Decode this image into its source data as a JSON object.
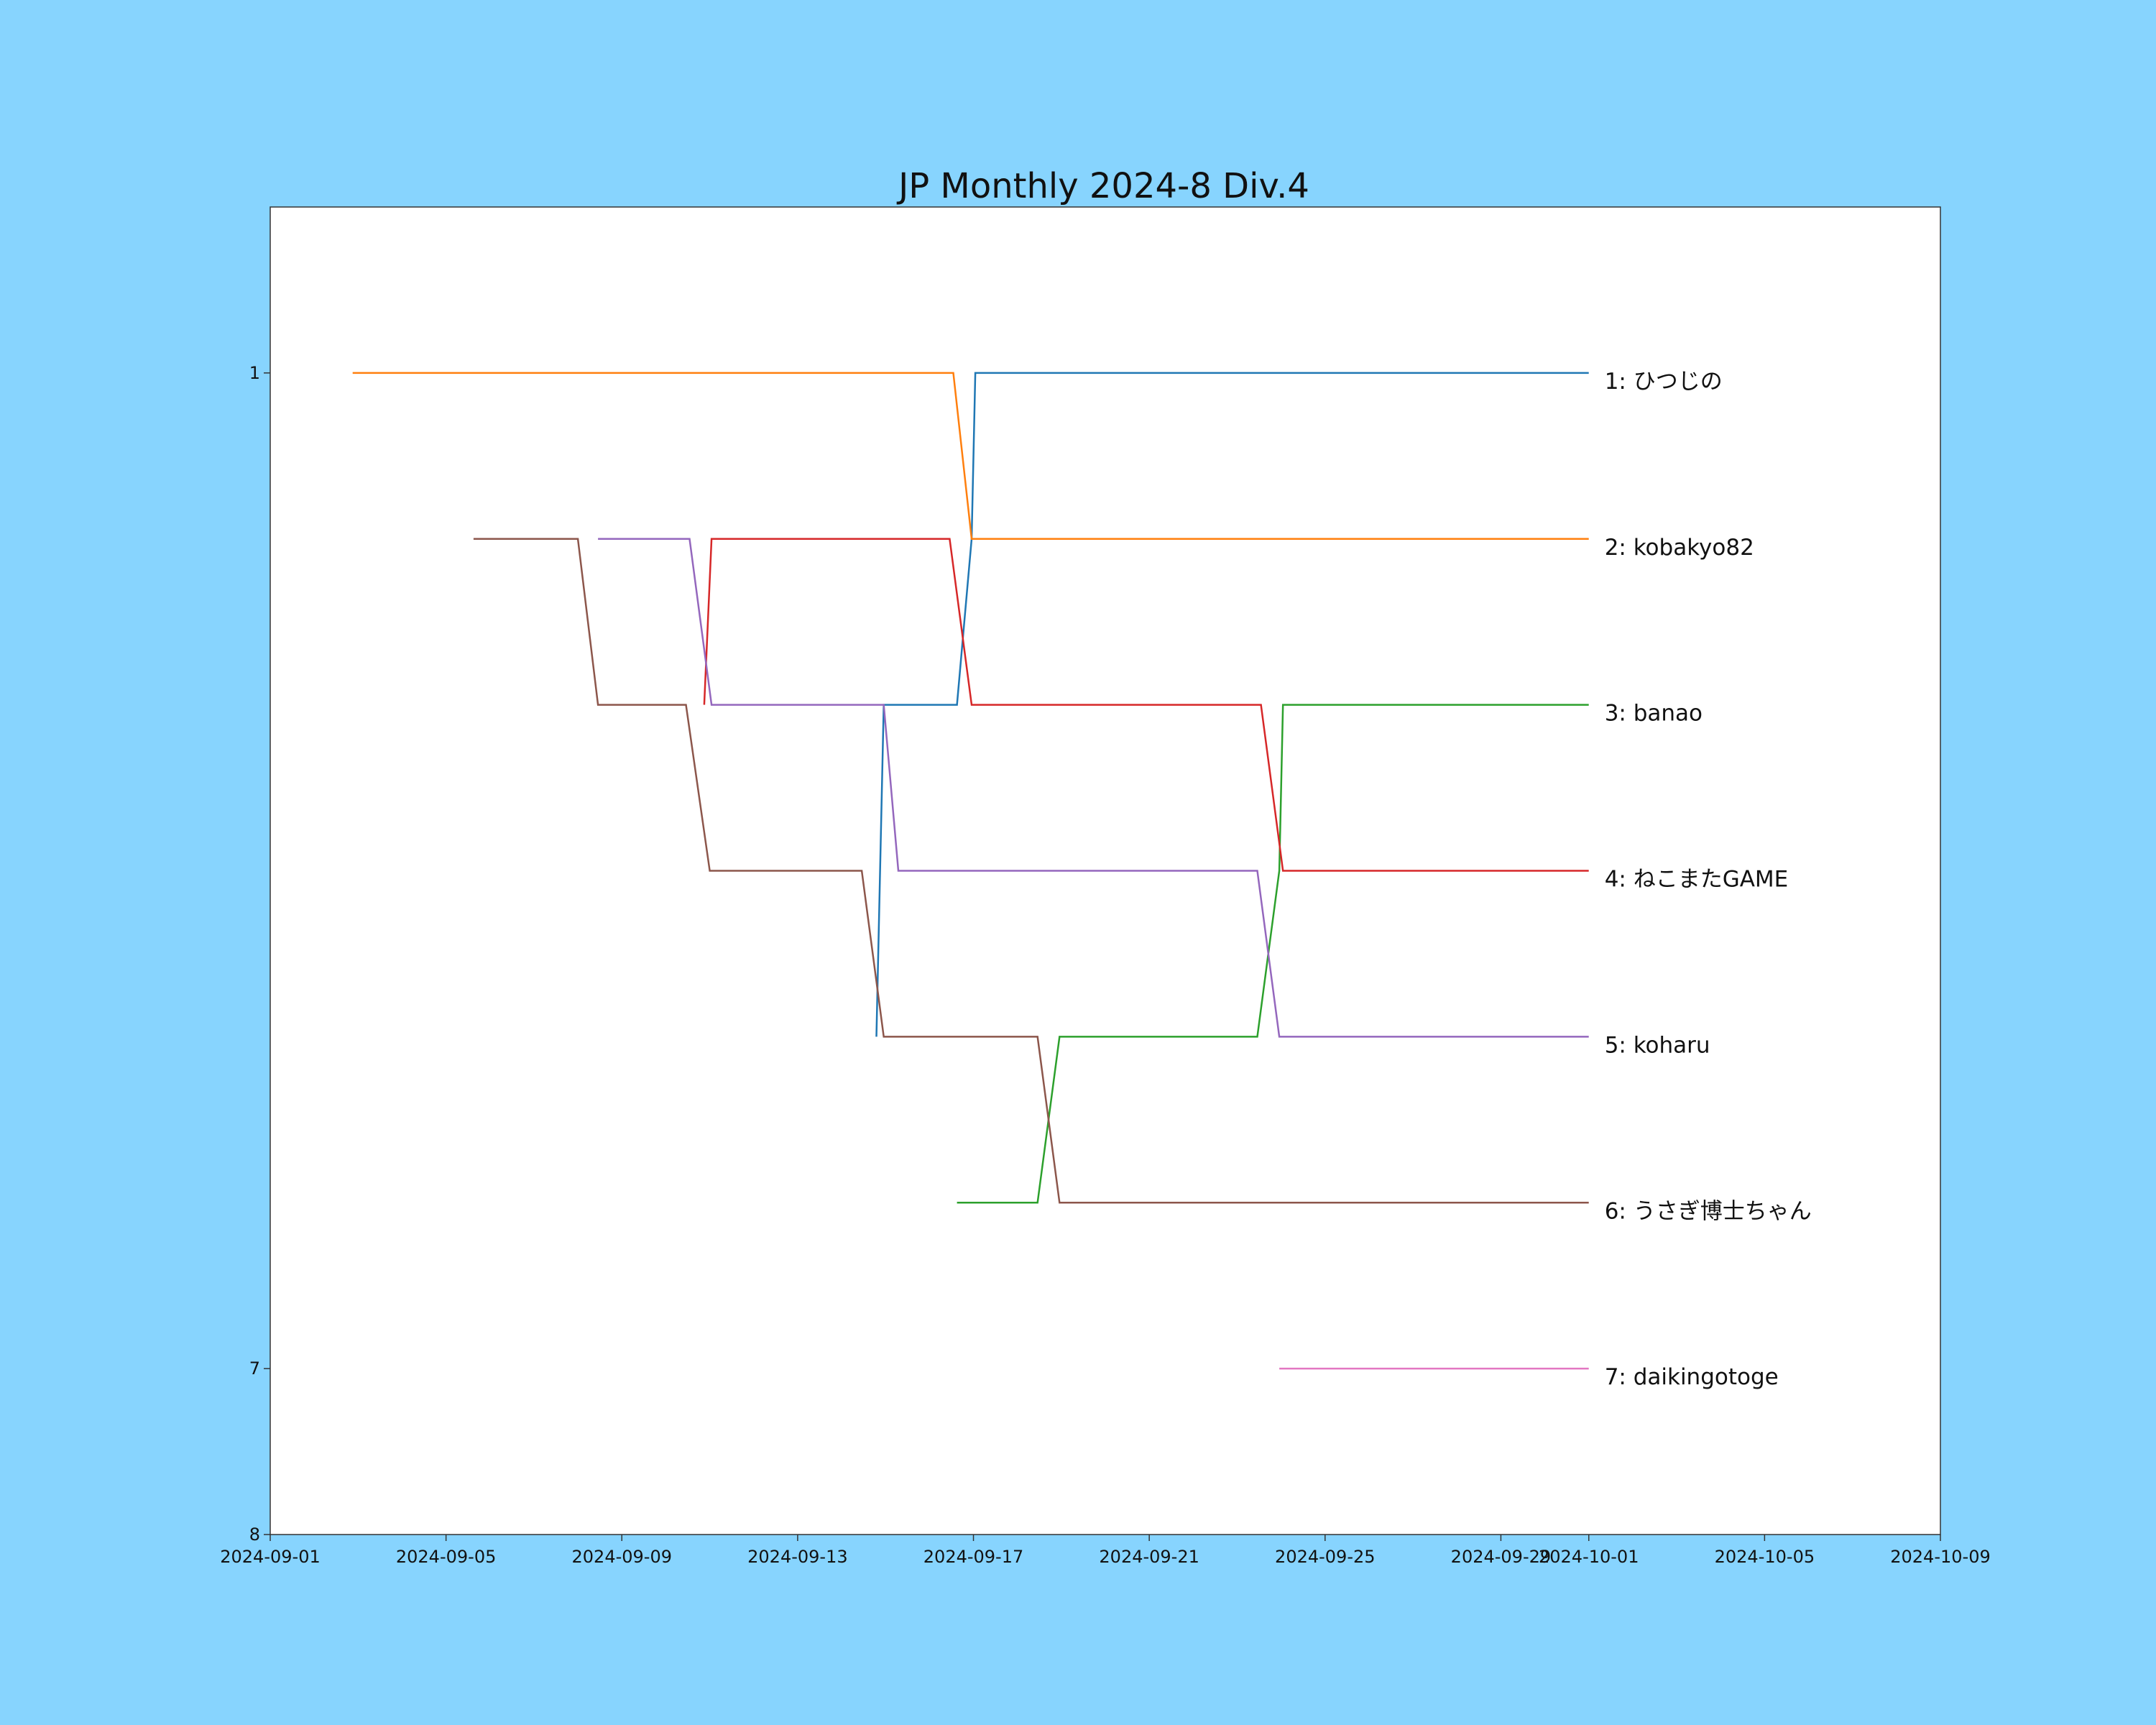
{
  "chart_data": {
    "type": "line",
    "title": "JP Monthly 2024-8 Div.4",
    "xlabel": "",
    "ylabel": "",
    "x_axis_type": "date",
    "xlim": [
      "2024-09-01",
      "2024-10-09"
    ],
    "ylim": [
      8,
      0
    ],
    "y_inverted": true,
    "grid": false,
    "legend": "none",
    "x_ticks": [
      "2024-09-01",
      "2024-09-05",
      "2024-09-09",
      "2024-09-13",
      "2024-09-17",
      "2024-09-21",
      "2024-09-25",
      "2024-09-29",
      "2024-10-01",
      "2024-10-05",
      "2024-10-09"
    ],
    "y_ticks": [
      1,
      7,
      8
    ],
    "background_color": "#87d4fe",
    "plot_background_color": "#ffffff",
    "series": [
      {
        "label": "1: ひつじの",
        "color": "#1f77b4",
        "points": [
          [
            "2024-09-14 19:00",
            5
          ],
          [
            "2024-09-14 23:00",
            3
          ],
          [
            "2024-09-16 15:00",
            3
          ],
          [
            "2024-09-16 23:00",
            2
          ],
          [
            "2024-09-17 01:00",
            1
          ],
          [
            "2024-10-01 00:00",
            1
          ]
        ]
      },
      {
        "label": "2: kobakyo82",
        "color": "#ff7f0e",
        "points": [
          [
            "2024-09-02 21:00",
            1
          ],
          [
            "2024-09-16 13:00",
            1
          ],
          [
            "2024-09-16 23:00",
            2
          ],
          [
            "2024-10-01 00:00",
            2
          ]
        ]
      },
      {
        "label": "3: banao",
        "color": "#2ca02c",
        "points": [
          [
            "2024-09-16 15:00",
            6
          ],
          [
            "2024-09-18 11:00",
            6
          ],
          [
            "2024-09-18 23:00",
            5
          ],
          [
            "2024-09-23 11:00",
            5
          ],
          [
            "2024-09-23 23:00",
            4
          ],
          [
            "2024-09-24 01:00",
            3
          ],
          [
            "2024-10-01 00:00",
            3
          ]
        ]
      },
      {
        "label": "4: ねこまたGAME",
        "color": "#d62728",
        "points": [
          [
            "2024-09-10 21:00",
            3
          ],
          [
            "2024-09-11 01:00",
            2
          ],
          [
            "2024-09-16 11:00",
            2
          ],
          [
            "2024-09-16 23:00",
            3
          ],
          [
            "2024-09-23 13:00",
            3
          ],
          [
            "2024-09-24 01:00",
            4
          ],
          [
            "2024-10-01 00:00",
            4
          ]
        ]
      },
      {
        "label": "5: koharu",
        "color": "#9467bd",
        "points": [
          [
            "2024-09-08 11:00",
            2
          ],
          [
            "2024-09-10 13:00",
            2
          ],
          [
            "2024-09-11 01:00",
            3
          ],
          [
            "2024-09-14 23:00",
            3
          ],
          [
            "2024-09-15 07:00",
            4
          ],
          [
            "2024-09-23 11:00",
            4
          ],
          [
            "2024-09-23 23:00",
            5
          ],
          [
            "2024-10-01 00:00",
            5
          ]
        ]
      },
      {
        "label": "6: うさぎ博士ちゃん",
        "color": "#8c564b",
        "points": [
          [
            "2024-09-05 15:00",
            2
          ],
          [
            "2024-09-08 00:00",
            2
          ],
          [
            "2024-09-08 11:00",
            3
          ],
          [
            "2024-09-10 11:00",
            3
          ],
          [
            "2024-09-11 00:00",
            4
          ],
          [
            "2024-09-14 11:00",
            4
          ],
          [
            "2024-09-14 23:00",
            5
          ],
          [
            "2024-09-18 11:00",
            5
          ],
          [
            "2024-09-18 23:00",
            6
          ],
          [
            "2024-10-01 00:00",
            6
          ]
        ]
      },
      {
        "label": "7: daikingotoge",
        "color": "#e377c2",
        "points": [
          [
            "2024-09-23 23:00",
            7
          ],
          [
            "2024-10-01 00:00",
            7
          ]
        ]
      }
    ]
  }
}
